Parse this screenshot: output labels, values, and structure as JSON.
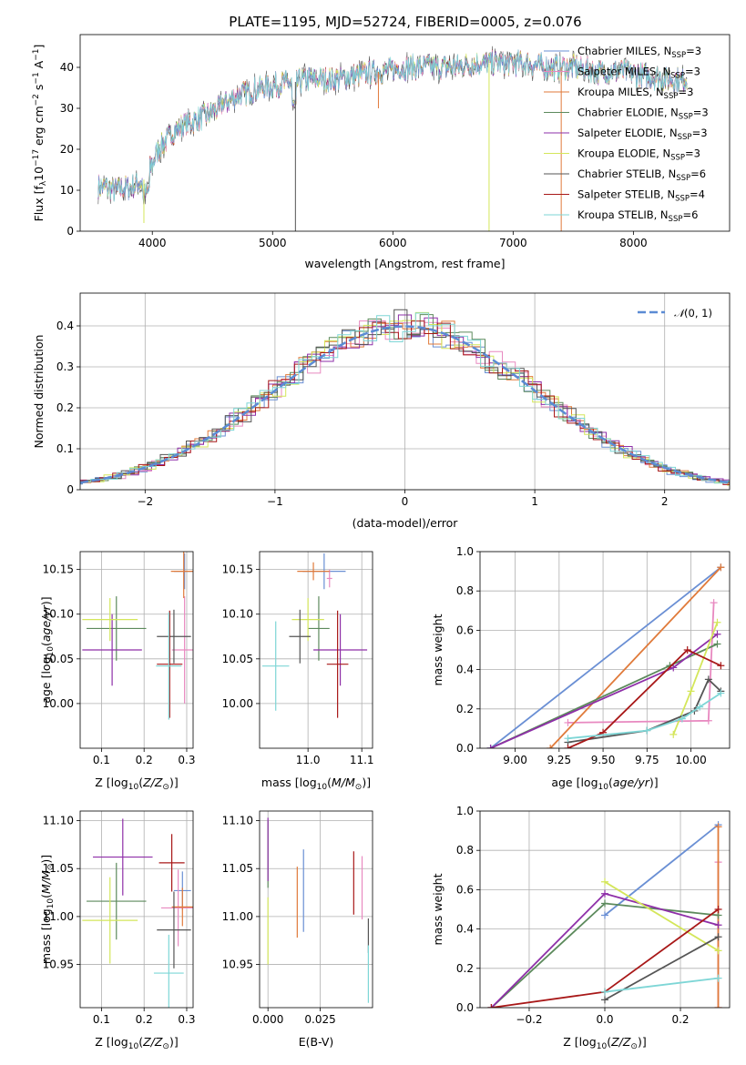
{
  "figure": {
    "title": "PLATE=1195, MJD=52724, FIBERID=0005, z=0.076"
  },
  "colors": {
    "Chabrier MILES": "#6a8fd4",
    "Salpeter MILES": "#e889c0",
    "Kroupa MILES": "#e07a3a",
    "Chabrier ELODIE": "#5c8a5c",
    "Salpeter ELODIE": "#8e2fa8",
    "Kroupa ELODIE": "#d4e65a",
    "Chabrier STELIB": "#555555",
    "Salpeter STELIB": "#a81818",
    "Kroupa STELIB": "#7ed6d6"
  },
  "chart_data": [
    {
      "type": "line",
      "id": "spectrum",
      "title": "PLATE=1195, MJD=52724, FIBERID=0005, z=0.076",
      "xlabel": "wavelength [Angstrom, rest frame]",
      "ylabel": "Flux [f_λ 10^-17 erg cm^-2 s^-1 A^-1]",
      "xlim": [
        3400,
        8800
      ],
      "ylim": [
        0,
        48
      ],
      "xticks": [
        4000,
        5000,
        6000,
        7000,
        8000
      ],
      "yticks": [
        0,
        10,
        20,
        30,
        40
      ],
      "grid": false,
      "legend_position": "top-right",
      "continuum": {
        "x": [
          3550,
          3700,
          3850,
          3950,
          4050,
          4200,
          4350,
          4500,
          4700,
          4900,
          5100,
          5300,
          5500,
          5700,
          5900,
          6100,
          6300,
          6500,
          6700,
          6900,
          7100,
          7300,
          7500,
          7700,
          7900,
          8100,
          8300
        ],
        "y": [
          11,
          10,
          11,
          13,
          20,
          25,
          27,
          29,
          33,
          35,
          36,
          37,
          37,
          38,
          39,
          40,
          40,
          40,
          41,
          41,
          41,
          40,
          40,
          39,
          39,
          38,
          37
        ]
      },
      "series": [
        {
          "name": "Chabrier MILES",
          "label_main": "Chabrier MILES, N",
          "label_sub": "SSP",
          "label_val": "=3"
        },
        {
          "name": "Salpeter MILES",
          "label_main": "Salpeter MILES, N",
          "label_sub": "SSP",
          "label_val": "=3"
        },
        {
          "name": "Kroupa MILES",
          "label_main": "Kroupa MILES, N",
          "label_sub": "SSP",
          "label_val": "=3"
        },
        {
          "name": "Chabrier ELODIE",
          "label_main": "Chabrier ELODIE, N",
          "label_sub": "SSP",
          "label_val": "=3"
        },
        {
          "name": "Salpeter ELODIE",
          "label_main": "Salpeter ELODIE, N",
          "label_sub": "SSP",
          "label_val": "=3"
        },
        {
          "name": "Kroupa ELODIE",
          "label_main": "Kroupa ELODIE, N",
          "label_sub": "SSP",
          "label_val": "=3"
        },
        {
          "name": "Chabrier STELIB",
          "label_main": "Chabrier STELIB, N",
          "label_sub": "SSP",
          "label_val": "=6"
        },
        {
          "name": "Salpeter STELIB",
          "label_main": "Salpeter STELIB, N",
          "label_sub": "SSP",
          "label_val": "=4"
        },
        {
          "name": "Kroupa STELIB",
          "label_main": "Kroupa STELIB, N",
          "label_sub": "SSP",
          "label_val": "=6"
        }
      ]
    },
    {
      "type": "histogram",
      "id": "residuals",
      "xlabel": "(data-model)/error",
      "ylabel": "Normed distribution",
      "xlim": [
        -2.5,
        2.5
      ],
      "ylim": [
        0,
        0.48
      ],
      "xticks": [
        -2,
        -1,
        0,
        1,
        2
      ],
      "yticks": [
        0.0,
        0.1,
        0.2,
        0.3,
        0.4
      ],
      "grid": true,
      "legend_position": "top-right",
      "reference_curve": {
        "name": "N(0,1)",
        "mu": 0,
        "sigma": 1,
        "style": "dashed"
      },
      "bin_width": 0.1
    },
    {
      "type": "scatter",
      "id": "age_vs_Z",
      "xlabel": "Z [log10(Z/Z⊙)]",
      "ylabel": "age  [log10(age/yr)]",
      "xlim": [
        0.05,
        0.315
      ],
      "ylim": [
        9.95,
        10.17
      ],
      "xticks": [
        0.1,
        0.2,
        0.3
      ],
      "yticks": [
        10.0,
        10.05,
        10.1,
        10.15
      ],
      "grid": true,
      "points": [
        {
          "series": "Chabrier MILES",
          "x": 0.295,
          "y": 10.148,
          "xerr": 0.025,
          "yerr": 0.02
        },
        {
          "series": "Salpeter MILES",
          "x": 0.295,
          "y": 10.06,
          "xerr": 0.03,
          "yerr": 0.06
        },
        {
          "series": "Kroupa MILES",
          "x": 0.293,
          "y": 10.148,
          "xerr": 0.03,
          "yerr": 0.03
        },
        {
          "series": "Chabrier ELODIE",
          "x": 0.135,
          "y": 10.084,
          "xerr": 0.07,
          "yerr": 0.036
        },
        {
          "series": "Salpeter ELODIE",
          "x": 0.125,
          "y": 10.06,
          "xerr": 0.07,
          "yerr": 0.04
        },
        {
          "series": "Kroupa ELODIE",
          "x": 0.12,
          "y": 10.094,
          "xerr": 0.065,
          "yerr": 0.024
        },
        {
          "series": "Chabrier STELIB",
          "x": 0.27,
          "y": 10.075,
          "xerr": 0.04,
          "yerr": 0.03
        },
        {
          "series": "Salpeter STELIB",
          "x": 0.26,
          "y": 10.044,
          "xerr": 0.03,
          "yerr": 0.06
        },
        {
          "series": "Kroupa STELIB",
          "x": 0.258,
          "y": 10.042,
          "xerr": 0.03,
          "yerr": 0.06
        }
      ]
    },
    {
      "type": "scatter",
      "id": "age_vs_mass",
      "xlabel": "mass [log10(M/M⊙)]",
      "ylabel": "",
      "xlim": [
        10.91,
        11.12
      ],
      "ylim": [
        9.95,
        10.17
      ],
      "xticks": [
        11.0,
        11.1
      ],
      "yticks": [
        10.0,
        10.05,
        10.1,
        10.15
      ],
      "grid": true,
      "points": [
        {
          "series": "Chabrier MILES",
          "x": 11.03,
          "y": 10.148,
          "xerr": 0.04,
          "yerr": 0.02
        },
        {
          "series": "Salpeter MILES",
          "x": 11.04,
          "y": 10.14,
          "xerr": 0.005,
          "yerr": 0.01
        },
        {
          "series": "Kroupa MILES",
          "x": 11.01,
          "y": 10.148,
          "xerr": 0.03,
          "yerr": 0.01
        },
        {
          "series": "Chabrier ELODIE",
          "x": 11.02,
          "y": 10.084,
          "xerr": 0.02,
          "yerr": 0.036
        },
        {
          "series": "Salpeter ELODIE",
          "x": 11.06,
          "y": 10.06,
          "xerr": 0.05,
          "yerr": 0.04
        },
        {
          "series": "Kroupa ELODIE",
          "x": 11.0,
          "y": 10.094,
          "xerr": 0.03,
          "yerr": 0.024
        },
        {
          "series": "Chabrier STELIB",
          "x": 10.985,
          "y": 10.075,
          "xerr": 0.02,
          "yerr": 0.03
        },
        {
          "series": "Salpeter STELIB",
          "x": 11.055,
          "y": 10.044,
          "xerr": 0.02,
          "yerr": 0.06
        },
        {
          "series": "Kroupa STELIB",
          "x": 10.94,
          "y": 10.042,
          "xerr": 0.025,
          "yerr": 0.05
        }
      ]
    },
    {
      "type": "line",
      "id": "mass_weight_vs_age",
      "xlabel": "age  [log10(age/yr)]",
      "ylabel": "mass weight",
      "xlim": [
        8.8,
        10.22
      ],
      "ylim": [
        0,
        1.0
      ],
      "xticks": [
        9.0,
        9.25,
        9.5,
        9.75,
        10.0
      ],
      "yticks": [
        0.0,
        0.2,
        0.4,
        0.6,
        0.8,
        1.0
      ],
      "grid": true,
      "series": [
        {
          "name": "Chabrier MILES",
          "x": [
            8.86,
            10.17
          ],
          "y": [
            0.0,
            0.92
          ]
        },
        {
          "name": "Salpeter MILES",
          "x": [
            9.3,
            10.1,
            10.13
          ],
          "y": [
            0.13,
            0.14,
            0.74
          ]
        },
        {
          "name": "Kroupa MILES",
          "x": [
            9.2,
            10.17
          ],
          "y": [
            0.0,
            0.92
          ]
        },
        {
          "name": "Chabrier ELODIE",
          "x": [
            8.86,
            9.88,
            10.15
          ],
          "y": [
            0.0,
            0.42,
            0.53
          ]
        },
        {
          "name": "Salpeter ELODIE",
          "x": [
            8.86,
            9.9,
            10.15
          ],
          "y": [
            0.0,
            0.41,
            0.58
          ]
        },
        {
          "name": "Kroupa ELODIE",
          "x": [
            9.9,
            10.0,
            10.15
          ],
          "y": [
            0.07,
            0.29,
            0.64
          ]
        },
        {
          "name": "Chabrier STELIB",
          "x": [
            9.3,
            9.75,
            10.02,
            10.1,
            10.17
          ],
          "y": [
            0.03,
            0.09,
            0.19,
            0.35,
            0.29
          ]
        },
        {
          "name": "Salpeter STELIB",
          "x": [
            9.3,
            9.5,
            9.98,
            10.17
          ],
          "y": [
            0.0,
            0.08,
            0.5,
            0.42
          ]
        },
        {
          "name": "Kroupa STELIB",
          "x": [
            9.3,
            9.75,
            9.95,
            10.05,
            10.17
          ],
          "y": [
            0.05,
            0.09,
            0.15,
            0.21,
            0.28
          ]
        }
      ]
    },
    {
      "type": "scatter",
      "id": "mass_vs_Z",
      "xlabel": "Z [log10(Z/Z⊙)]",
      "ylabel": "mass [log10(M/M⊙)]",
      "xlim": [
        0.05,
        0.315
      ],
      "ylim": [
        10.905,
        11.11
      ],
      "xticks": [
        0.1,
        0.2,
        0.3
      ],
      "yticks": [
        10.95,
        11.0,
        11.05,
        11.1
      ],
      "grid": true,
      "points": [
        {
          "series": "Chabrier MILES",
          "x": 0.29,
          "y": 11.027,
          "xerr": 0.02,
          "yerr": 0.02
        },
        {
          "series": "Salpeter MILES",
          "x": 0.28,
          "y": 11.009,
          "xerr": 0.04,
          "yerr": 0.04
        },
        {
          "series": "Kroupa MILES",
          "x": 0.29,
          "y": 11.01,
          "xerr": 0.025,
          "yerr": 0.02
        },
        {
          "series": "Chabrier ELODIE",
          "x": 0.135,
          "y": 11.016,
          "xerr": 0.07,
          "yerr": 0.04
        },
        {
          "series": "Salpeter ELODIE",
          "x": 0.15,
          "y": 11.062,
          "xerr": 0.07,
          "yerr": 0.04
        },
        {
          "series": "Kroupa ELODIE",
          "x": 0.12,
          "y": 10.996,
          "xerr": 0.065,
          "yerr": 0.045
        },
        {
          "series": "Chabrier STELIB",
          "x": 0.27,
          "y": 10.986,
          "xerr": 0.04,
          "yerr": 0.04
        },
        {
          "series": "Salpeter STELIB",
          "x": 0.265,
          "y": 11.056,
          "xerr": 0.03,
          "yerr": 0.03
        },
        {
          "series": "Kroupa STELIB",
          "x": 0.258,
          "y": 10.941,
          "xerr": 0.035,
          "yerr": 0.04
        }
      ]
    },
    {
      "type": "scatter",
      "id": "mass_vs_ebv",
      "xlabel": "E(B-V)",
      "ylabel": "",
      "xlim": [
        -0.004,
        0.05
      ],
      "ylim": [
        10.905,
        11.11
      ],
      "xticks": [
        0.0,
        0.025
      ],
      "yticks": [
        10.95,
        11.0,
        11.05,
        11.1
      ],
      "grid": true,
      "points": [
        {
          "series": "Chabrier MILES",
          "x": 0.017,
          "y": 11.027,
          "yerr": 0.043
        },
        {
          "series": "Salpeter MILES",
          "x": 0.045,
          "y": 11.03,
          "yerr": 0.033
        },
        {
          "series": "Kroupa MILES",
          "x": 0.014,
          "y": 11.015,
          "yerr": 0.037
        },
        {
          "series": "Chabrier ELODIE",
          "x": 0.0,
          "y": 11.065,
          "yerr": 0.035
        },
        {
          "series": "Salpeter ELODIE",
          "x": 0.0,
          "y": 11.07,
          "yerr": 0.033
        },
        {
          "series": "Kroupa ELODIE",
          "x": 0.0,
          "y": 10.985,
          "yerr": 0.035
        },
        {
          "series": "Chabrier STELIB",
          "x": 0.048,
          "y": 10.98,
          "yerr": 0.018
        },
        {
          "series": "Salpeter STELIB",
          "x": 0.041,
          "y": 11.035,
          "yerr": 0.033
        },
        {
          "series": "Kroupa STELIB",
          "x": 0.048,
          "y": 10.94,
          "yerr": 0.03
        }
      ]
    },
    {
      "type": "line",
      "id": "mass_weight_vs_Z",
      "xlabel": "Z [log10(Z/Z⊙)]",
      "ylabel": "mass weight",
      "xlim": [
        -0.33,
        0.33
      ],
      "ylim": [
        0,
        1.0
      ],
      "xticks": [
        -0.2,
        0.0,
        0.2
      ],
      "yticks": [
        0.0,
        0.2,
        0.4,
        0.6,
        0.8,
        1.0
      ],
      "grid": true,
      "series": [
        {
          "name": "Chabrier MILES",
          "x": [
            0.0,
            0.3
          ],
          "y": [
            0.47,
            0.93
          ]
        },
        {
          "name": "Salpeter MILES",
          "x": [
            0.3,
            0.3
          ],
          "y": [
            0.0,
            0.74
          ]
        },
        {
          "name": "Kroupa MILES",
          "x": [
            0.3,
            0.3
          ],
          "y": [
            0.0,
            0.92
          ]
        },
        {
          "name": "Chabrier ELODIE",
          "x": [
            -0.3,
            0.0,
            0.3
          ],
          "y": [
            0.0,
            0.53,
            0.47
          ]
        },
        {
          "name": "Salpeter ELODIE",
          "x": [
            -0.3,
            0.0,
            0.3
          ],
          "y": [
            0.0,
            0.58,
            0.42
          ]
        },
        {
          "name": "Kroupa ELODIE",
          "x": [
            0.0,
            0.3
          ],
          "y": [
            0.64,
            0.29
          ]
        },
        {
          "name": "Chabrier STELIB",
          "x": [
            0.0,
            0.3
          ],
          "y": [
            0.04,
            0.36
          ]
        },
        {
          "name": "Salpeter STELIB",
          "x": [
            -0.3,
            0.0,
            0.3
          ],
          "y": [
            0.0,
            0.08,
            0.5
          ]
        },
        {
          "name": "Kroupa STELIB",
          "x": [
            0.0,
            0.3
          ],
          "y": [
            0.08,
            0.15
          ]
        }
      ]
    }
  ]
}
